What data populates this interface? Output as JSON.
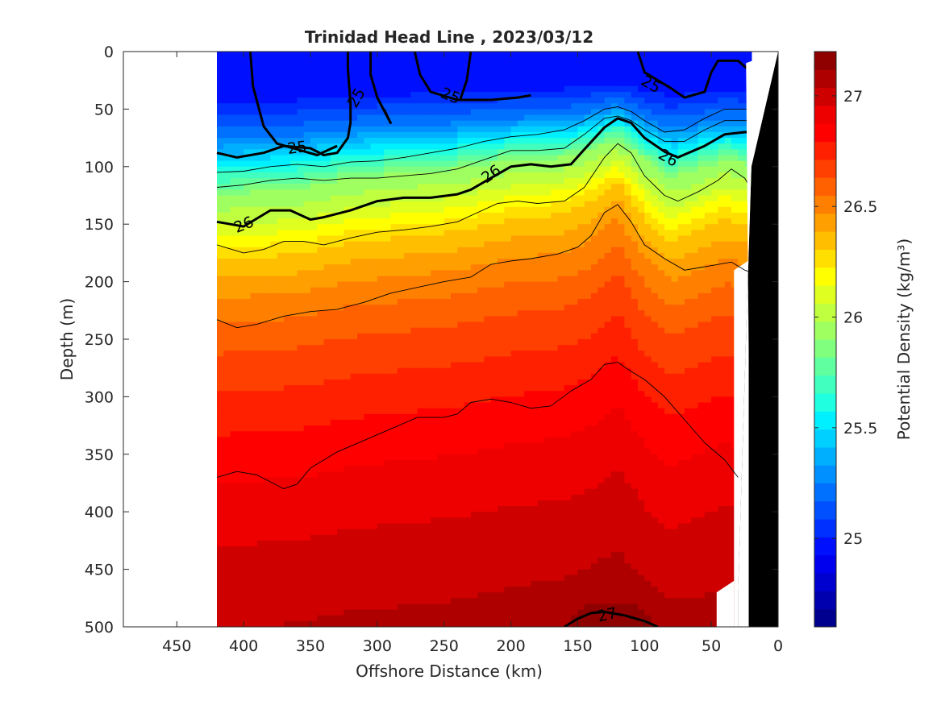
{
  "chart_data": {
    "type": "heatmap",
    "title": "Trinidad Head Line , 2023/03/12",
    "xlabel": "Offshore Distance (km)",
    "ylabel": "Depth (m)",
    "colorbar_label": "Potential Density (kg/m³)",
    "xlim": [
      490,
      0
    ],
    "ylim": [
      0,
      500
    ],
    "x_reversed": true,
    "y_reversed": true,
    "xticks": [
      450,
      400,
      350,
      300,
      250,
      200,
      150,
      100,
      50,
      0
    ],
    "yticks": [
      0,
      50,
      100,
      150,
      200,
      250,
      300,
      350,
      400,
      450,
      500
    ],
    "colorbar": {
      "range": [
        24.6,
        27.2
      ],
      "ticks": [
        25,
        25.5,
        26,
        26.5,
        27
      ],
      "tick_labels": [
        "25",
        "25.5",
        "26",
        "26.5",
        "27"
      ],
      "levels": [
        24.6,
        24.7,
        24.8,
        24.9,
        25.0,
        25.1,
        25.2,
        25.3,
        25.4,
        25.5,
        25.6,
        25.7,
        25.8,
        25.9,
        26.0,
        26.1,
        26.2,
        26.3,
        26.4,
        26.5,
        26.6,
        26.7,
        26.8,
        26.9,
        27.0,
        27.1,
        27.2
      ],
      "colors": [
        "#00008f",
        "#0000af",
        "#0000cf",
        "#0000ef",
        "#0010ff",
        "#0030ff",
        "#0050ff",
        "#0070ff",
        "#0090ff",
        "#00b0ff",
        "#00d0ff",
        "#00f0ff",
        "#20ffdf",
        "#40ffbf",
        "#60ff9f",
        "#80ff7f",
        "#9fff60",
        "#bfff40",
        "#dfff20",
        "#ffff00",
        "#ffdf00",
        "#ffbf00",
        "#ff9f00",
        "#ff8000",
        "#ff6000",
        "#ff4000",
        "#ff2000",
        "#ff0000",
        "#ef0000",
        "#cf0000",
        "#af0000",
        "#8f0000"
      ]
    },
    "data_x_range": [
      420,
      20
    ],
    "isopycnals": [
      {
        "label": "25",
        "bold": true,
        "points": [
          [
            420,
            88
          ],
          [
            405,
            92
          ],
          [
            385,
            88
          ],
          [
            370,
            82
          ],
          [
            350,
            84
          ],
          [
            340,
            90
          ],
          [
            330,
            88
          ],
          [
            322,
            75
          ],
          [
            320,
            62
          ],
          [
            320,
            45
          ],
          [
            322,
            15
          ],
          [
            322,
            0
          ]
        ]
      },
      {
        "label": "25",
        "bold": true,
        "points": [
          [
            395,
            0
          ],
          [
            393,
            30
          ],
          [
            385,
            65
          ],
          [
            375,
            80
          ],
          [
            345,
            90
          ],
          [
            330,
            82
          ]
        ]
      },
      {
        "label": "25",
        "bold": true,
        "points": [
          [
            305,
            0
          ],
          [
            305,
            20
          ],
          [
            300,
            40
          ],
          [
            290,
            62
          ],
          [
            295,
            50
          ]
        ]
      },
      {
        "label": "25",
        "bold": true,
        "points": [
          [
            272,
            0
          ],
          [
            268,
            20
          ],
          [
            260,
            35
          ],
          [
            240,
            42
          ],
          [
            215,
            42
          ],
          [
            195,
            40
          ],
          [
            185,
            38
          ]
        ]
      },
      {
        "label": "25",
        "bold": true,
        "points": [
          [
            230,
            0
          ],
          [
            233,
            25
          ],
          [
            238,
            42
          ]
        ]
      },
      {
        "label": "25",
        "bold": true,
        "points": [
          [
            105,
            0
          ],
          [
            100,
            18
          ],
          [
            80,
            32
          ],
          [
            70,
            40
          ],
          [
            55,
            35
          ],
          [
            50,
            18
          ],
          [
            45,
            8
          ],
          [
            30,
            8
          ],
          [
            20,
            18
          ]
        ]
      },
      {
        "label": "26",
        "bold": true,
        "points": [
          [
            420,
            148
          ],
          [
            410,
            150
          ],
          [
            400,
            152
          ],
          [
            380,
            138
          ],
          [
            365,
            138
          ],
          [
            350,
            146
          ],
          [
            340,
            144
          ],
          [
            320,
            138
          ],
          [
            300,
            130
          ],
          [
            280,
            127
          ],
          [
            260,
            127
          ],
          [
            240,
            124
          ],
          [
            230,
            120
          ],
          [
            215,
            110
          ],
          [
            200,
            100
          ],
          [
            185,
            98
          ],
          [
            170,
            100
          ],
          [
            155,
            98
          ],
          [
            145,
            85
          ],
          [
            130,
            66
          ],
          [
            120,
            58
          ],
          [
            110,
            62
          ],
          [
            100,
            75
          ],
          [
            85,
            87
          ],
          [
            75,
            92
          ],
          [
            55,
            82
          ],
          [
            40,
            72
          ],
          [
            25,
            70
          ],
          [
            20,
            70
          ]
        ]
      },
      {
        "label": "",
        "bold": false,
        "points": [
          [
            420,
            105
          ],
          [
            400,
            104
          ],
          [
            380,
            100
          ],
          [
            360,
            98
          ],
          [
            340,
            100
          ],
          [
            320,
            96
          ],
          [
            300,
            95
          ],
          [
            280,
            92
          ],
          [
            260,
            88
          ],
          [
            240,
            84
          ],
          [
            220,
            78
          ],
          [
            200,
            74
          ],
          [
            180,
            72
          ],
          [
            160,
            68
          ],
          [
            145,
            60
          ],
          [
            130,
            50
          ],
          [
            120,
            48
          ],
          [
            110,
            52
          ],
          [
            100,
            60
          ],
          [
            85,
            70
          ],
          [
            70,
            68
          ],
          [
            55,
            58
          ],
          [
            40,
            50
          ],
          [
            25,
            50
          ],
          [
            20,
            50
          ]
        ]
      },
      {
        "label": "",
        "bold": false,
        "points": [
          [
            420,
            118
          ],
          [
            400,
            116
          ],
          [
            380,
            112
          ],
          [
            360,
            110
          ],
          [
            340,
            112
          ],
          [
            320,
            110
          ],
          [
            300,
            110
          ],
          [
            280,
            108
          ],
          [
            260,
            106
          ],
          [
            240,
            102
          ],
          [
            220,
            94
          ],
          [
            200,
            86
          ],
          [
            180,
            86
          ],
          [
            160,
            84
          ],
          [
            145,
            72
          ],
          [
            130,
            58
          ],
          [
            120,
            56
          ],
          [
            110,
            60
          ],
          [
            100,
            68
          ],
          [
            85,
            78
          ],
          [
            70,
            78
          ],
          [
            55,
            68
          ],
          [
            40,
            60
          ],
          [
            25,
            60
          ],
          [
            20,
            60
          ]
        ]
      },
      {
        "label": "",
        "bold": false,
        "points": [
          [
            420,
            168
          ],
          [
            400,
            175
          ],
          [
            385,
            172
          ],
          [
            370,
            165
          ],
          [
            355,
            165
          ],
          [
            340,
            168
          ],
          [
            320,
            162
          ],
          [
            300,
            157
          ],
          [
            280,
            155
          ],
          [
            260,
            152
          ],
          [
            240,
            148
          ],
          [
            225,
            140
          ],
          [
            210,
            132
          ],
          [
            195,
            130
          ],
          [
            180,
            132
          ],
          [
            160,
            130
          ],
          [
            145,
            118
          ],
          [
            130,
            92
          ],
          [
            120,
            80
          ],
          [
            110,
            88
          ],
          [
            100,
            108
          ],
          [
            85,
            125
          ],
          [
            75,
            130
          ],
          [
            60,
            122
          ],
          [
            45,
            112
          ],
          [
            35,
            102
          ],
          [
            25,
            110
          ],
          [
            20,
            120
          ]
        ]
      },
      {
        "label": "",
        "bold": false,
        "points": [
          [
            420,
            233
          ],
          [
            405,
            240
          ],
          [
            390,
            237
          ],
          [
            370,
            230
          ],
          [
            350,
            226
          ],
          [
            330,
            224
          ],
          [
            310,
            218
          ],
          [
            290,
            210
          ],
          [
            270,
            205
          ],
          [
            250,
            200
          ],
          [
            230,
            196
          ],
          [
            215,
            185
          ],
          [
            200,
            182
          ],
          [
            185,
            180
          ],
          [
            165,
            176
          ],
          [
            150,
            170
          ],
          [
            140,
            160
          ],
          [
            130,
            140
          ],
          [
            120,
            133
          ],
          [
            110,
            148
          ],
          [
            100,
            168
          ],
          [
            85,
            180
          ],
          [
            70,
            190
          ],
          [
            60,
            188
          ],
          [
            45,
            185
          ],
          [
            35,
            183
          ],
          [
            25,
            190
          ],
          [
            20,
            192
          ]
        ]
      },
      {
        "label": "",
        "bold": false,
        "points": [
          [
            420,
            370
          ],
          [
            405,
            365
          ],
          [
            390,
            368
          ],
          [
            370,
            380
          ],
          [
            360,
            376
          ],
          [
            350,
            362
          ],
          [
            330,
            348
          ],
          [
            310,
            338
          ],
          [
            290,
            328
          ],
          [
            270,
            318
          ],
          [
            250,
            318
          ],
          [
            240,
            315
          ],
          [
            230,
            305
          ],
          [
            215,
            302
          ],
          [
            200,
            305
          ],
          [
            185,
            310
          ],
          [
            170,
            308
          ],
          [
            155,
            295
          ],
          [
            140,
            285
          ],
          [
            130,
            272
          ],
          [
            120,
            270
          ],
          [
            110,
            278
          ],
          [
            100,
            285
          ],
          [
            85,
            300
          ],
          [
            70,
            320
          ],
          [
            55,
            340
          ],
          [
            40,
            355
          ],
          [
            30,
            370
          ]
        ]
      },
      {
        "label": "27",
        "bold": true,
        "points": [
          [
            160,
            500
          ],
          [
            150,
            493
          ],
          [
            140,
            488
          ],
          [
            130,
            487
          ],
          [
            115,
            490
          ],
          [
            100,
            495
          ],
          [
            90,
            500
          ]
        ]
      }
    ],
    "annotations": [
      "25",
      "25",
      "25",
      "25",
      "26",
      "26",
      "26",
      "26",
      "27"
    ]
  }
}
